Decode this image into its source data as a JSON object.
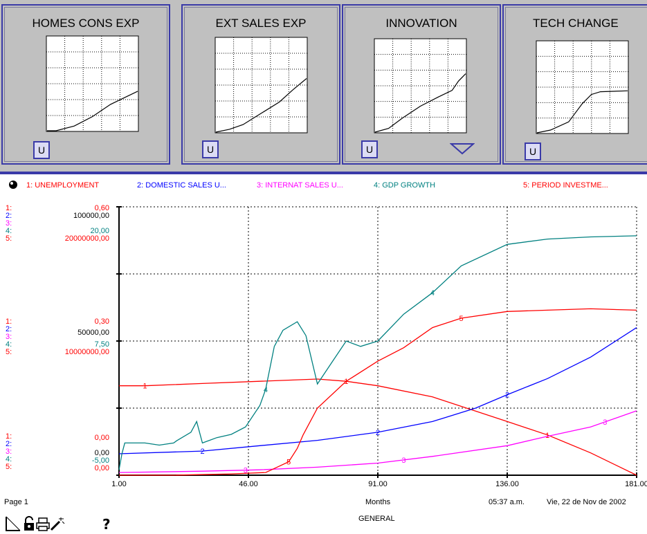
{
  "colors": {
    "unemployment": "#ff0000",
    "domestic": "#0000ff",
    "internat": "#ff00ff",
    "gdp": "#008080",
    "investment": "#ff0000"
  },
  "panels": [
    {
      "title": "HOMES CONS EXP",
      "button": "U",
      "curve": [
        [
          0,
          0
        ],
        [
          0.1,
          0
        ],
        [
          0.3,
          0.05
        ],
        [
          0.5,
          0.15
        ],
        [
          0.7,
          0.28
        ],
        [
          0.85,
          0.35
        ],
        [
          1,
          0.42
        ]
      ]
    },
    {
      "title": "EXT SALES EXP",
      "button": "U",
      "curve": [
        [
          0,
          0
        ],
        [
          0.15,
          0.03
        ],
        [
          0.3,
          0.08
        ],
        [
          0.5,
          0.2
        ],
        [
          0.7,
          0.32
        ],
        [
          0.85,
          0.45
        ],
        [
          1,
          0.57
        ]
      ]
    },
    {
      "title": "INNOVATION",
      "button": "U",
      "curve": [
        [
          0,
          0
        ],
        [
          0.15,
          0.04
        ],
        [
          0.3,
          0.15
        ],
        [
          0.5,
          0.28
        ],
        [
          0.7,
          0.38
        ],
        [
          0.85,
          0.45
        ],
        [
          0.92,
          0.55
        ],
        [
          1,
          0.63
        ]
      ]
    },
    {
      "title": "TECH CHANGE",
      "button": "U",
      "curve": [
        [
          0,
          0
        ],
        [
          0.15,
          0.03
        ],
        [
          0.35,
          0.12
        ],
        [
          0.5,
          0.32
        ],
        [
          0.6,
          0.42
        ],
        [
          0.7,
          0.45
        ],
        [
          1,
          0.46
        ]
      ]
    }
  ],
  "legend": [
    {
      "label": "1: UNEMPLOYMENT",
      "color": "#ff0000"
    },
    {
      "label": "2: DOMESTIC SALES U...",
      "color": "#0000ff"
    },
    {
      "label": "3: INTERNAT SALES U...",
      "color": "#ff00ff"
    },
    {
      "label": "4: GDP GROWTH",
      "color": "#008080"
    },
    {
      "label": "5: PERIOD INVESTME...",
      "color": "#ff0000"
    }
  ],
  "scale_top": {
    "s1": "1:",
    "s2": "2:",
    "s3": "3:",
    "s4": "4:",
    "s5": "5:",
    "v1": "0,60",
    "v2": "100000,00",
    "v4": "20,00",
    "v5": "20000000,00"
  },
  "scale_mid": {
    "s1": "1:",
    "s2": "2:",
    "s3": "3:",
    "s4": "4:",
    "s5": "5:",
    "v1": "0,30",
    "v2": "50000,00",
    "v4": "7,50",
    "v5": "10000000,00"
  },
  "scale_bot": {
    "s1": "1:",
    "s2": "2:",
    "s3": "3:",
    "s4": "4:",
    "s5": "5:",
    "v1": "0,00",
    "v2": "0,00",
    "v4": "-5,00",
    "v5": "0,00"
  },
  "x_ticks": [
    "1.00",
    "46.00",
    "91.00",
    "136.00",
    "181.00"
  ],
  "footer": {
    "page": "Page 1",
    "xlabel": "Months",
    "time": "05:37 a.m.",
    "date": "Vie, 22 de Nov de 2002",
    "sheet": "GENERAL",
    "help": "?"
  },
  "chart_data": {
    "type": "line",
    "xlabel": "Months",
    "xlim": [
      1,
      181
    ],
    "series": [
      {
        "name": "UNEMPLOYMENT",
        "marker": "1",
        "x": [
          1,
          2,
          10,
          30,
          50,
          70,
          80,
          91,
          110,
          136,
          150,
          165,
          181
        ],
        "y": [
          0.2,
          0.2,
          0.2,
          0.205,
          0.21,
          0.215,
          0.21,
          0.2,
          0.175,
          0.12,
          0.09,
          0.05,
          0.0
        ]
      },
      {
        "name": "DOMESTIC SALES U...",
        "marker": "2",
        "x": [
          1,
          30,
          50,
          70,
          91,
          110,
          125,
          136,
          150,
          165,
          181
        ],
        "y": [
          8000,
          9000,
          11000,
          13000,
          16000,
          20000,
          25000,
          30000,
          36000,
          44000,
          55000
        ]
      },
      {
        "name": "INTERNAT SALES U...",
        "marker": "3",
        "x": [
          1,
          30,
          50,
          70,
          91,
          110,
          136,
          150,
          165,
          181
        ],
        "y": [
          1000,
          1500,
          2000,
          3000,
          4500,
          7000,
          11000,
          14500,
          18000,
          24000
        ]
      },
      {
        "name": "GDP GROWTH",
        "marker": "4",
        "x": [
          1,
          2,
          3,
          10,
          15,
          20,
          21,
          26,
          28,
          30,
          35,
          40,
          45,
          50,
          52,
          55,
          58,
          63,
          66,
          70,
          75,
          80,
          85,
          91,
          100,
          110,
          120,
          136,
          150,
          165,
          181
        ],
        "y": [
          -4.5,
          -3.0,
          -2.0,
          -2.0,
          -2.2,
          -2.0,
          -1.8,
          -1.0,
          0.0,
          -2.0,
          -1.5,
          -1.2,
          -0.5,
          1.5,
          3.0,
          7.0,
          8.5,
          9.3,
          8.0,
          3.5,
          5.5,
          7.5,
          7.0,
          7.5,
          10.0,
          12.0,
          14.5,
          16.5,
          17.0,
          17.2,
          17.3
        ]
      },
      {
        "name": "PERIOD INVESTME...",
        "marker": "5",
        "x": [
          1,
          20,
          40,
          52,
          55,
          60,
          63,
          65,
          70,
          80,
          91,
          100,
          110,
          120,
          136,
          150,
          165,
          181
        ],
        "y": [
          0,
          0,
          100000,
          200000,
          500000,
          1000000,
          2000000,
          3000000,
          5000000,
          7000000,
          8500000,
          9500000,
          11000000,
          11700000,
          12200000,
          12300000,
          12400000,
          12300000
        ]
      }
    ]
  }
}
